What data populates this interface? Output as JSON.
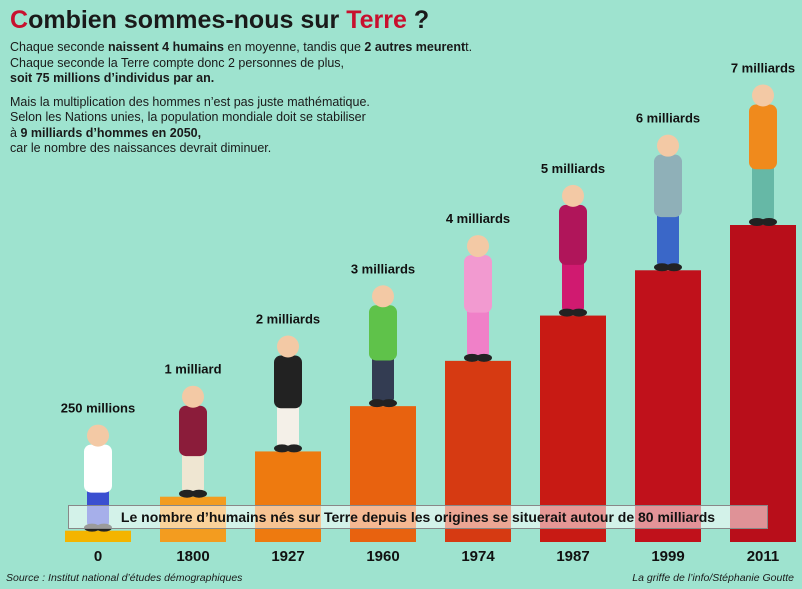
{
  "header": {
    "title_first_letter": "C",
    "title_middle": "ombien sommes-nous sur ",
    "title_highlight": "Terre",
    "title_end": " ?"
  },
  "intro": {
    "p1_a": "Chaque seconde ",
    "p1_b": "naissent 4 humains",
    "p1_c": " en moyenne, tandis que ",
    "p1_d": "2 autres meurent",
    "p1_e": "t.",
    "p1_f": "Chaque seconde la Terre compte donc 2 personnes de plus,",
    "p1_g": "soit 75 millions d’individus par an.",
    "p2_a": "Mais la multiplication des hommes n’est pas juste mathématique.",
    "p2_b": "Selon les Nations unies, la population mondiale doit se stabiliser",
    "p2_c": "à ",
    "p2_d": "9 milliards d’hommes en 2050,",
    "p2_e": "car le nombre des naissances devrait diminuer."
  },
  "banner": {
    "text": "Le nombre d’humains nés sur Terre depuis les origines se situerait autour de 80 milliards"
  },
  "footer": {
    "source": "Source : Institut national d’études démographiques",
    "credit": "La griffe de l’info/Stéphanie Goutte"
  },
  "colors": {
    "background": "#9ee3cf",
    "accent": "#c8102e",
    "bar_colors": [
      "#f4b400",
      "#f39c1f",
      "#ee7a0f",
      "#e8620f",
      "#d63a12",
      "#c81a14",
      "#c0111b",
      "#b80e1a"
    ]
  },
  "chart_data": {
    "type": "bar",
    "categories": [
      "0",
      "1800",
      "1927",
      "1960",
      "1974",
      "1987",
      "1999",
      "2011"
    ],
    "values": [
      0.25,
      1,
      2,
      3,
      4,
      5,
      6,
      7
    ],
    "value_labels": [
      "250 millions",
      "1 milliard",
      "2 milliards",
      "3 milliards",
      "4 milliards",
      "5 milliards",
      "6 milliards",
      "7 milliards"
    ],
    "unit": "milliards",
    "ylim": [
      0,
      7
    ],
    "grid": false,
    "legend": "none"
  }
}
